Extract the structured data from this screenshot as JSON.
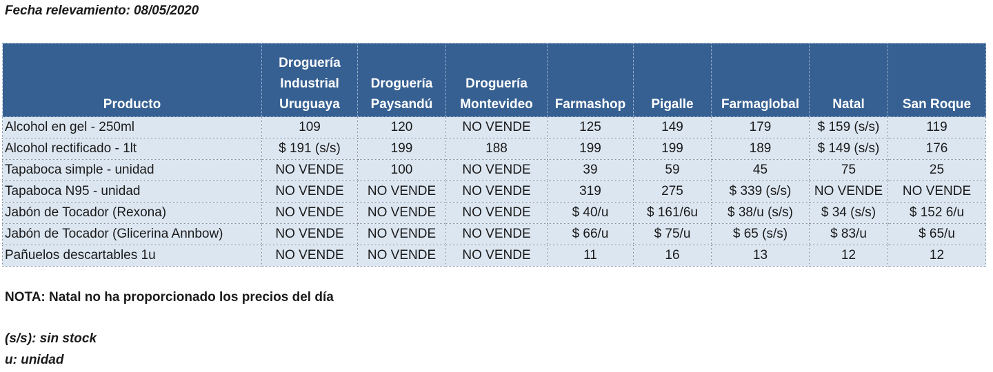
{
  "survey_date": "Fecha relevamiento: 08/05/2020",
  "table": {
    "headers": [
      "Producto",
      "Droguería\nIndustrial\nUruguaya",
      "Droguería\nPaysandú",
      "Droguería\nMontevideo",
      "Farmashop",
      "Pigalle",
      "Farmaglobal",
      "Natal",
      "San Roque"
    ],
    "rows": [
      [
        "Alcohol en gel  - 250ml",
        "109",
        "120",
        "NO VENDE",
        "125",
        "149",
        "179",
        "$ 159 (s/s)",
        "119"
      ],
      [
        "Alcohol rectificado - 1lt",
        "$ 191 (s/s)",
        "199",
        "188",
        "199",
        "199",
        "189",
        "$ 149 (s/s)",
        "176"
      ],
      [
        "Tapaboca simple - unidad",
        "NO VENDE",
        "100",
        "NO VENDE",
        "39",
        "59",
        "45",
        "75",
        "25"
      ],
      [
        "Tapaboca N95 - unidad",
        "NO VENDE",
        "NO VENDE",
        "NO VENDE",
        "319",
        "275",
        "$ 339 (s/s)",
        "NO VENDE",
        "NO VENDE"
      ],
      [
        "Jabón de Tocador (Rexona)",
        "NO VENDE",
        "NO VENDE",
        "NO VENDE",
        "$ 40/u",
        "$ 161/6u",
        "$ 38/u (s/s)",
        "$ 34 (s/s)",
        "$ 152 6/u"
      ],
      [
        "Jabón de Tocador (Glicerina Annbow)",
        "NO VENDE",
        "NO VENDE",
        "NO VENDE",
        "$ 66/u",
        "$ 75/u",
        "$ 65 (s/s)",
        "$ 83/u",
        "$ 65/u"
      ],
      [
        "Pañuelos descartables 1u",
        "NO VENDE",
        "NO VENDE",
        "NO VENDE",
        "11",
        "16",
        "13",
        "12",
        "12"
      ]
    ]
  },
  "note": "NOTA:  Natal no ha proporcionado los precios del día",
  "legend": {
    "sin_stock": "(s/s): sin stock",
    "unidad": "u: unidad"
  },
  "colors": {
    "header_background": "#366092",
    "header_text": "#ffffff",
    "cell_background": "#dce6f1"
  }
}
